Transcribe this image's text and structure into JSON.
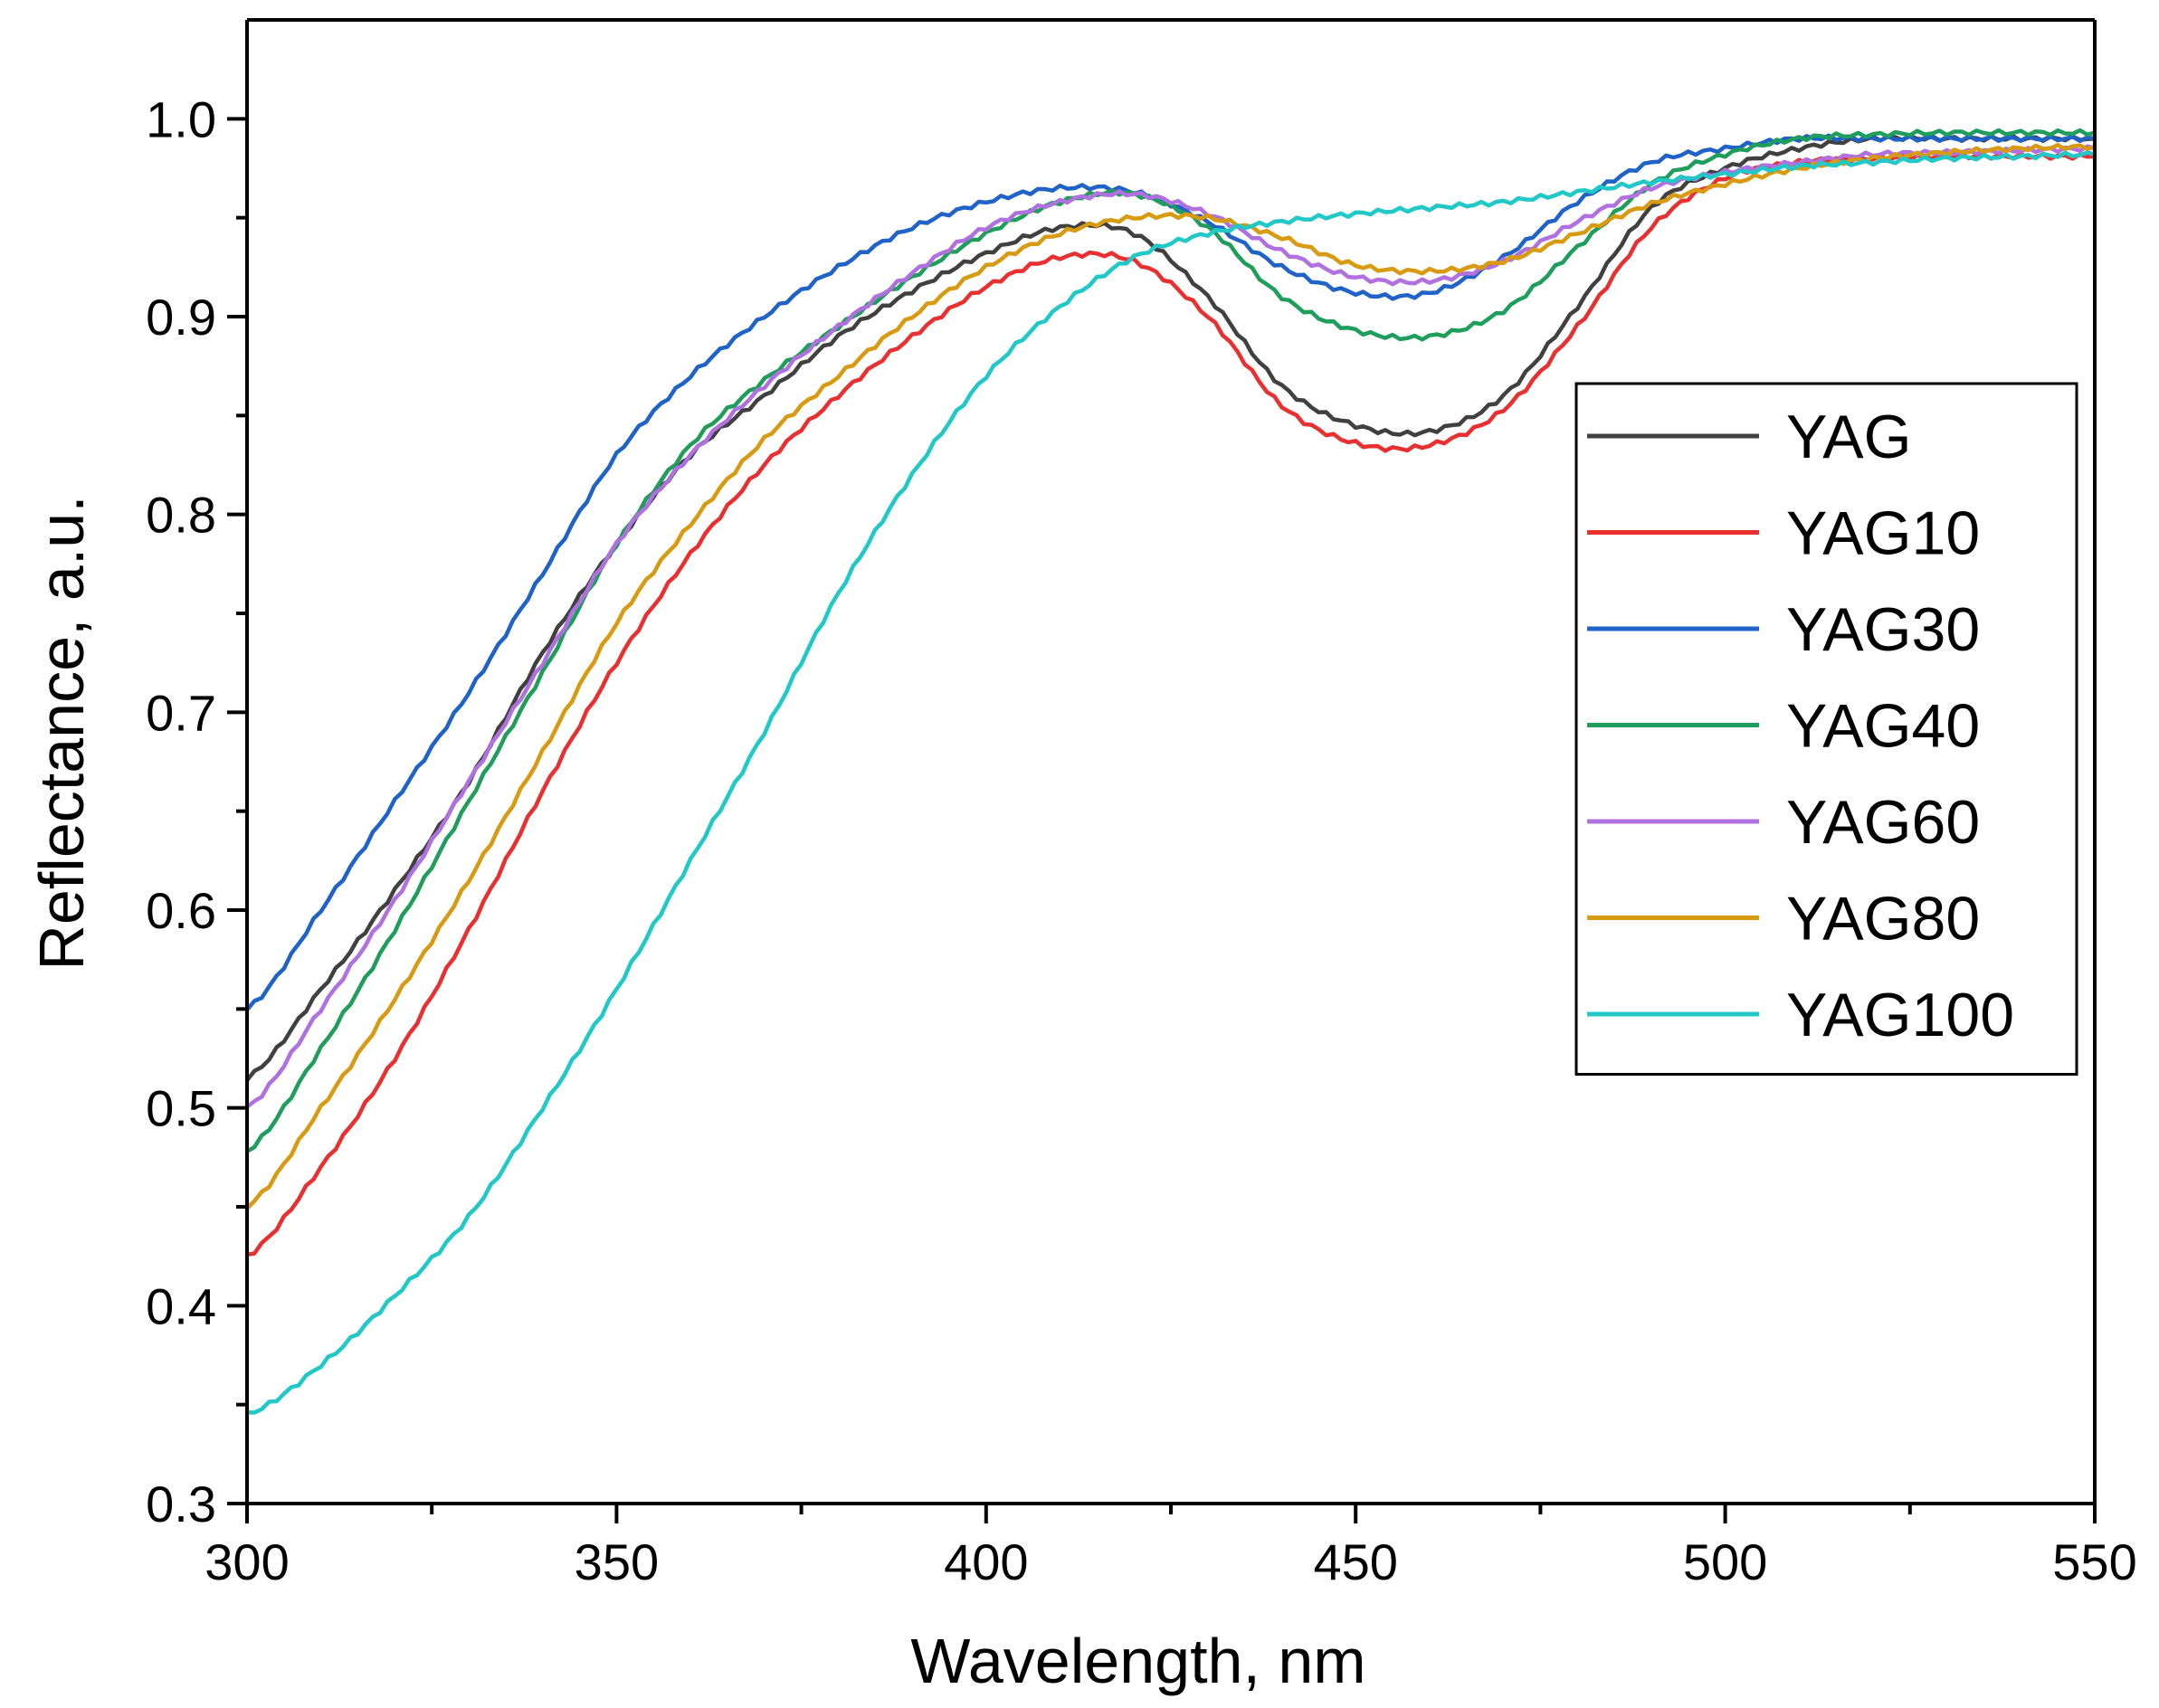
{
  "chart_data": {
    "type": "line",
    "title": "",
    "xlabel": "Wavelength, nm",
    "ylabel": "Reflectance, a.u.",
    "xlim": [
      300,
      550
    ],
    "ylim": [
      0.3,
      1.05
    ],
    "xticks": [
      300,
      350,
      400,
      450,
      500,
      550
    ],
    "xtick_labels": [
      "300",
      "350",
      "400",
      "450",
      "500",
      "550"
    ],
    "yticks": [
      0.3,
      0.4,
      0.5,
      0.6,
      0.7,
      0.8,
      0.9,
      1.0
    ],
    "ytick_labels": [
      "0.3",
      "0.4",
      "0.5",
      "0.6",
      "0.7",
      "0.8",
      "0.9",
      "1.0"
    ],
    "grid": false,
    "legend_position": "right-center",
    "x": [
      300,
      310,
      320,
      330,
      340,
      350,
      360,
      370,
      380,
      390,
      400,
      410,
      420,
      430,
      440,
      450,
      460,
      470,
      480,
      490,
      500,
      510,
      520,
      530,
      540,
      550
    ],
    "series": [
      {
        "name": "YAG",
        "color": "#404040",
        "values": [
          0.515,
          0.56,
          0.61,
          0.665,
          0.73,
          0.785,
          0.83,
          0.86,
          0.89,
          0.913,
          0.932,
          0.945,
          0.942,
          0.91,
          0.865,
          0.845,
          0.842,
          0.86,
          0.905,
          0.955,
          0.975,
          0.985,
          0.99,
          0.99,
          0.99,
          0.99
        ]
      },
      {
        "name": "YAG10",
        "color": "#e83030",
        "values": [
          0.425,
          0.47,
          0.525,
          0.59,
          0.66,
          0.725,
          0.78,
          0.825,
          0.86,
          0.89,
          0.915,
          0.93,
          0.928,
          0.9,
          0.855,
          0.836,
          0.835,
          0.853,
          0.895,
          0.945,
          0.97,
          0.978,
          0.98,
          0.981,
          0.981,
          0.981
        ]
      },
      {
        "name": "YAG30",
        "color": "#1f62c8",
        "values": [
          0.55,
          0.6,
          0.655,
          0.71,
          0.77,
          0.83,
          0.87,
          0.9,
          0.925,
          0.945,
          0.958,
          0.965,
          0.963,
          0.948,
          0.925,
          0.912,
          0.912,
          0.93,
          0.958,
          0.978,
          0.985,
          0.99,
          0.99,
          0.99,
          0.99,
          0.99
        ]
      },
      {
        "name": "YAG40",
        "color": "#1e9e5a",
        "values": [
          0.478,
          0.53,
          0.59,
          0.655,
          0.72,
          0.785,
          0.835,
          0.868,
          0.895,
          0.92,
          0.942,
          0.958,
          0.962,
          0.945,
          0.91,
          0.893,
          0.89,
          0.903,
          0.935,
          0.967,
          0.982,
          0.99,
          0.992,
          0.993,
          0.993,
          0.993
        ]
      },
      {
        "name": "YAG60",
        "color": "#b070e0",
        "values": [
          0.5,
          0.55,
          0.605,
          0.665,
          0.725,
          0.785,
          0.83,
          0.865,
          0.895,
          0.922,
          0.945,
          0.958,
          0.962,
          0.952,
          0.933,
          0.92,
          0.918,
          0.928,
          0.948,
          0.965,
          0.973,
          0.978,
          0.982,
          0.983,
          0.984,
          0.985
        ]
      },
      {
        "name": "YAG80",
        "color": "#d89a10",
        "values": [
          0.45,
          0.5,
          0.555,
          0.615,
          0.68,
          0.745,
          0.795,
          0.838,
          0.87,
          0.9,
          0.925,
          0.942,
          0.95,
          0.95,
          0.94,
          0.926,
          0.923,
          0.928,
          0.942,
          0.957,
          0.967,
          0.975,
          0.98,
          0.983,
          0.985,
          0.986
        ]
      },
      {
        "name": "YAG100",
        "color": "#20c8c8",
        "values": [
          0.345,
          0.37,
          0.405,
          0.445,
          0.5,
          0.56,
          0.625,
          0.69,
          0.76,
          0.82,
          0.87,
          0.905,
          0.93,
          0.942,
          0.948,
          0.952,
          0.955,
          0.958,
          0.963,
          0.968,
          0.972,
          0.976,
          0.978,
          0.98,
          0.981,
          0.982
        ]
      }
    ]
  }
}
